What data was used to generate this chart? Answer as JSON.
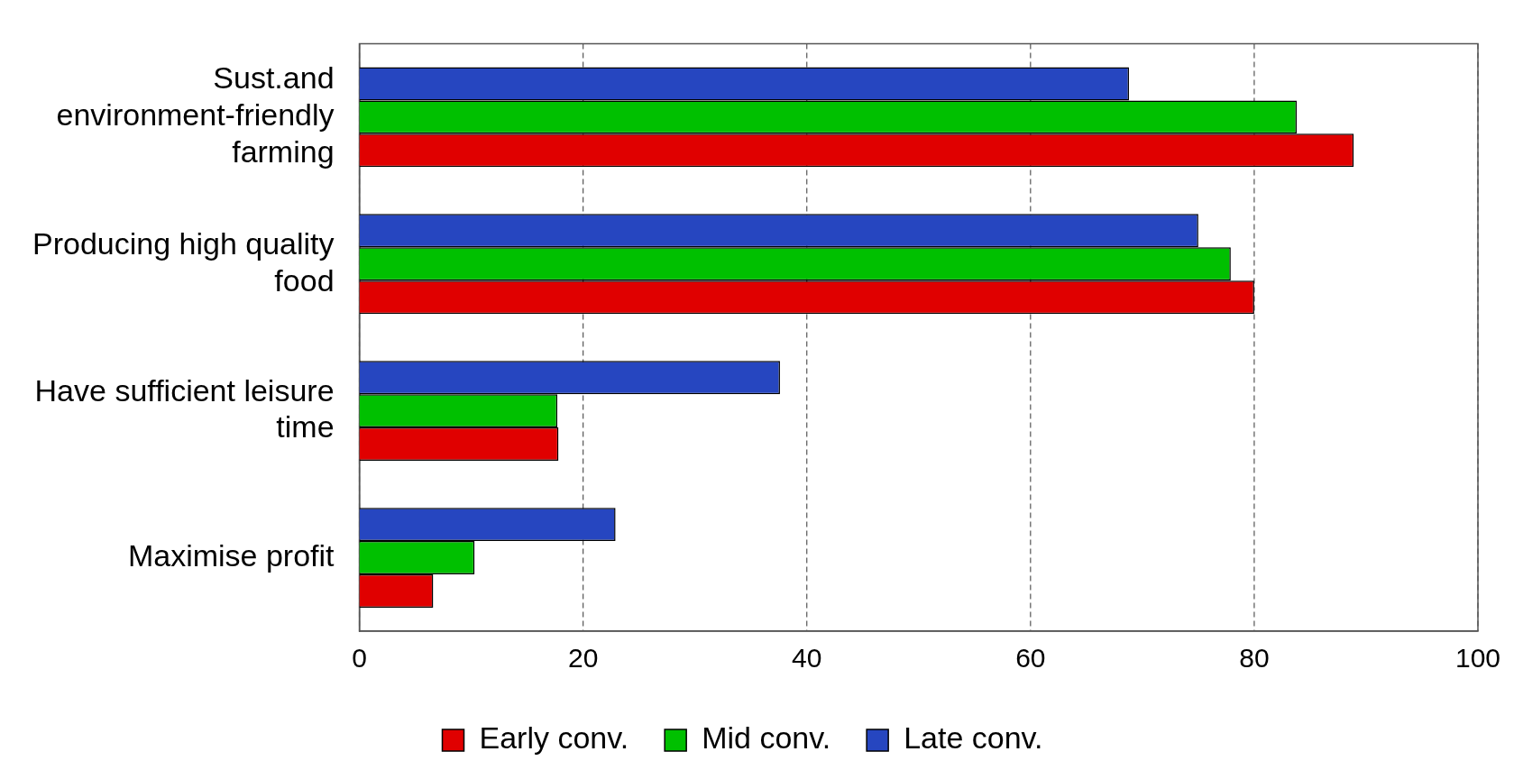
{
  "chart_data": {
    "type": "bar",
    "orientation": "horizontal",
    "categories": [
      "Sust.and environment-friendly farming",
      "Producing high quality food",
      "Have sufficient leisure time",
      "Maximise profit"
    ],
    "series": [
      {
        "name": "Early conv.",
        "color": "#e00000",
        "values": [
          88.9,
          80.0,
          17.8,
          6.6
        ]
      },
      {
        "name": "Mid conv.",
        "color": "#00c000",
        "values": [
          83.8,
          77.9,
          17.7,
          10.3
        ]
      },
      {
        "name": "Late conv.",
        "color": "#2646c0",
        "values": [
          68.8,
          75.0,
          37.6,
          22.9
        ]
      }
    ],
    "xlim": [
      0,
      100
    ],
    "xticks": [
      0,
      20,
      40,
      60,
      80,
      100
    ],
    "grid": "x",
    "legend": "bottom"
  }
}
